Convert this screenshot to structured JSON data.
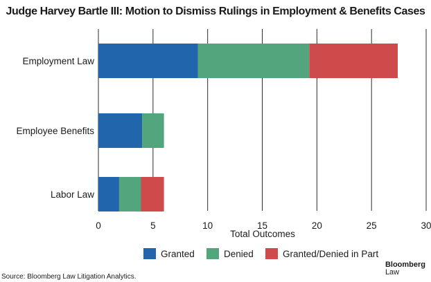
{
  "chart_data": {
    "type": "bar",
    "orientation": "horizontal",
    "stacked": true,
    "title": "Judge Harvey Bartle III: Motion to Dismiss Rulings in Employment & Benefits Cases",
    "categories": [
      "Employment Law",
      "Employee Benefits",
      "Labor Law"
    ],
    "series": [
      {
        "name": "Granted",
        "color": "#2166ac",
        "values": [
          9.1,
          4.0,
          1.9
        ]
      },
      {
        "name": "Denied",
        "color": "#52a57c",
        "values": [
          10.2,
          2.0,
          2.0
        ]
      },
      {
        "name": "Granted/Denied in Part",
        "color": "#cf4a4a",
        "values": [
          8.1,
          0,
          2.1
        ]
      }
    ],
    "xlabel": "Total Outcomes",
    "ylabel": "",
    "xlim": [
      0,
      30
    ],
    "xticks": [
      0,
      5,
      10,
      15,
      20,
      25,
      30
    ],
    "grid": true,
    "legend_position": "bottom"
  },
  "footer": {
    "source": "Source: Bloomberg Law Litigation Analytics.",
    "brand_top": "Bloomberg",
    "brand_bottom": "Law"
  }
}
